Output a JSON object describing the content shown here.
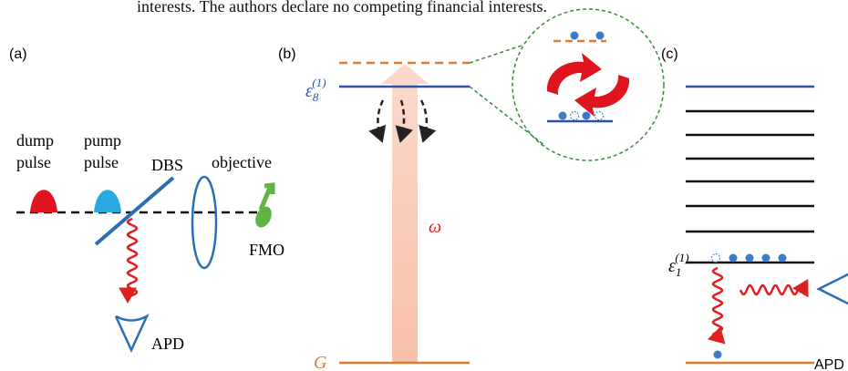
{
  "header": {
    "text": "interests. The authors declare no competing financial interests."
  },
  "panel_a": {
    "label": "(a)",
    "dump": [
      "dump",
      "pulse"
    ],
    "pump": [
      "pump",
      "pulse"
    ],
    "dbs": "DBS",
    "objective": "objective",
    "fmo": "FMO",
    "apd": "APD"
  },
  "panel_b": {
    "label": "(b)",
    "level": {
      "symbol": "ε",
      "subscript": "8",
      "superscript": "(1)"
    },
    "omega": "ω",
    "ground": "G"
  },
  "panel_c": {
    "label": "(c)",
    "level": {
      "symbol": "ε",
      "subscript": "1",
      "superscript": "(1)"
    },
    "apd": "APD"
  }
}
